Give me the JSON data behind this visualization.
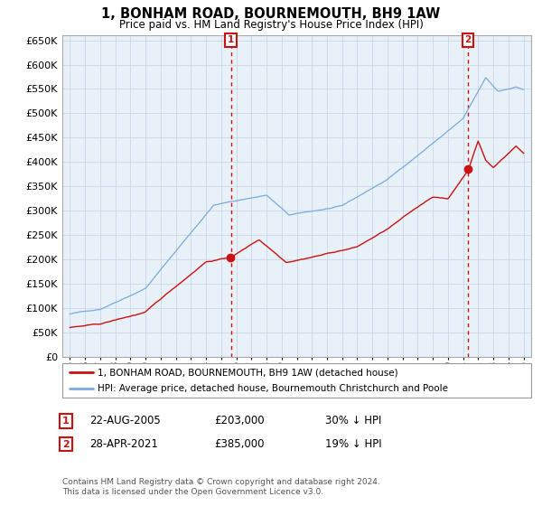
{
  "title": "1, BONHAM ROAD, BOURNEMOUTH, BH9 1AW",
  "subtitle": "Price paid vs. HM Land Registry's House Price Index (HPI)",
  "legend_line1": "1, BONHAM ROAD, BOURNEMOUTH, BH9 1AW (detached house)",
  "legend_line2": "HPI: Average price, detached house, Bournemouth Christchurch and Poole",
  "annotation1_date": "22-AUG-2005",
  "annotation1_price": "£203,000",
  "annotation1_pct": "30% ↓ HPI",
  "annotation2_date": "28-APR-2021",
  "annotation2_price": "£385,000",
  "annotation2_pct": "19% ↓ HPI",
  "footer": "Contains HM Land Registry data © Crown copyright and database right 2024.\nThis data is licensed under the Open Government Licence v3.0.",
  "hpi_color": "#7aaadd",
  "price_color": "#cc1111",
  "annotation_box_color": "#cc1111",
  "grid_color": "#c8d8e8",
  "plot_bg_color": "#e8f0f8",
  "bg_color": "#ffffff",
  "ylim": [
    0,
    660000
  ],
  "ytick_step": 50000,
  "sale1_year": 2005.65,
  "sale1_price": 203000,
  "sale2_year": 2021.33,
  "sale2_price": 385000
}
